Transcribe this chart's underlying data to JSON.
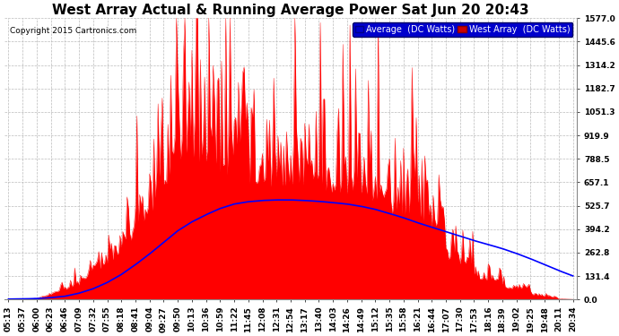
{
  "title": "West Array Actual & Running Average Power Sat Jun 20 20:43",
  "copyright": "Copyright 2015 Cartronics.com",
  "legend_labels": [
    "Average  (DC Watts)",
    "West Array  (DC Watts)"
  ],
  "ymin": 0.0,
  "ymax": 1577.0,
  "yticks": [
    0.0,
    131.4,
    262.8,
    394.2,
    525.7,
    657.1,
    788.5,
    919.9,
    1051.3,
    1182.7,
    1314.2,
    1445.6,
    1577.0
  ],
  "background_color": "#ffffff",
  "plot_bg_color": "#ffffff",
  "grid_color": "#bbbbbb",
  "title_fontsize": 11,
  "tick_fontsize": 6.5,
  "west_array_color": "#ff0000",
  "average_color": "#0000ff",
  "time_labels": [
    "05:13",
    "05:37",
    "06:00",
    "06:23",
    "06:46",
    "07:09",
    "07:32",
    "07:55",
    "08:18",
    "08:41",
    "09:04",
    "09:27",
    "09:50",
    "10:13",
    "10:36",
    "10:59",
    "11:22",
    "11:45",
    "12:08",
    "12:31",
    "12:54",
    "13:17",
    "13:40",
    "14:03",
    "14:26",
    "14:49",
    "15:12",
    "15:35",
    "15:58",
    "16:21",
    "16:44",
    "17:07",
    "17:30",
    "17:53",
    "18:16",
    "18:39",
    "19:02",
    "19:25",
    "19:48",
    "20:11",
    "20:34"
  ]
}
